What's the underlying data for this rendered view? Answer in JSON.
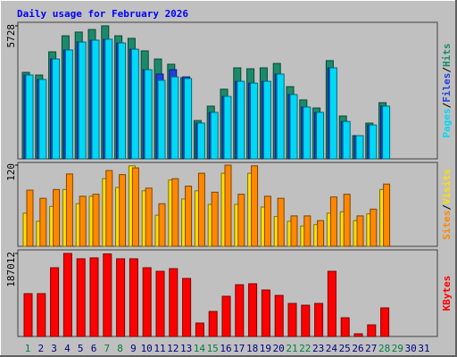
{
  "chart_data": {
    "type": "bar",
    "title": "Daily usage for February 2026",
    "categories": [
      "1",
      "2",
      "3",
      "4",
      "5",
      "6",
      "7",
      "8",
      "9",
      "10",
      "11",
      "12",
      "13",
      "14",
      "15",
      "16",
      "17",
      "18",
      "19",
      "20",
      "21",
      "22",
      "23",
      "24",
      "25",
      "26",
      "27",
      "28",
      "29",
      "30",
      "31"
    ],
    "category_colors": [
      "#008040",
      "#000080",
      "#000080",
      "#000080",
      "#000080",
      "#000080",
      "#008040",
      "#008040",
      "#000080",
      "#000080",
      "#000080",
      "#000080",
      "#000080",
      "#008040",
      "#008040",
      "#000080",
      "#000080",
      "#000080",
      "#000080",
      "#000080",
      "#008040",
      "#008040",
      "#000080",
      "#000080",
      "#000080",
      "#000080",
      "#000080",
      "#008040",
      "#008040",
      "#000080",
      "#000080"
    ],
    "legend_separator": "/",
    "panels": [
      {
        "ylim": [
          0,
          5880
        ],
        "yticks": [
          5728
        ],
        "series": [
          {
            "name": "Hits",
            "color": "#1b8a6b",
            "values": [
              3725,
              3610,
              4610,
              5300,
              5460,
              5570,
              5728,
              5300,
              5190,
              4650,
              4300,
              4075,
              3500,
              1650,
              2270,
              3000,
              3920,
              3880,
              3920,
              4110,
              3110,
              2540,
              2190,
              4230,
              1845,
              1000,
              1540,
              2420,
              0,
              0,
              0
            ]
          },
          {
            "name": "Files",
            "color": "#2040e0",
            "values": [
              3610,
              3420,
              4300,
              4690,
              5030,
              5110,
              5150,
              4990,
              4720,
              3840,
              3650,
              3840,
              3530,
              1540,
              2000,
              2690,
              3340,
              3260,
              3340,
              3650,
              2770,
              2230,
              2000,
              3920,
              1610,
              1000,
              1460,
              2270,
              0,
              0,
              0
            ]
          },
          {
            "name": "Pages",
            "color": "#00d8f8",
            "values": [
              3610,
              3420,
              4300,
              4690,
              5030,
              5110,
              5150,
              4990,
              4720,
              3840,
              3380,
              3530,
              3460,
              1540,
              2000,
              2690,
              3340,
              3260,
              3340,
              3650,
              2770,
              2230,
              2000,
              3920,
              1610,
              1000,
              1460,
              2270,
              0,
              0,
              0
            ]
          }
        ]
      },
      {
        "ylim": [
          0,
          124
        ],
        "yticks": [
          120
        ],
        "series": [
          {
            "name": "Visits",
            "color": "#ffe000",
            "values": [
              49,
              37,
              59,
              84,
              63,
              74,
              100,
              87,
              119,
              82,
              46,
              98,
              70,
              82,
              62,
              108,
              62,
              108,
              58,
              44,
              37,
              30,
              32,
              49,
              51,
              38,
              48,
              84,
              0,
              0,
              0
            ]
          },
          {
            "name": "Sites",
            "color": "#ff8800",
            "values": [
              83,
              71,
              84,
              107,
              74,
              77,
              112,
              106,
              116,
              86,
              63,
              100,
              89,
              108,
              80,
              120,
              77,
              119,
              74,
              71,
              45,
              45,
              38,
              73,
              77,
              45,
              55,
              92,
              0,
              0,
              0
            ]
          }
        ]
      },
      {
        "ylim": [
          0,
          195000
        ],
        "yticks": [
          187012
        ],
        "series": [
          {
            "name": "KBytes",
            "color": "#ff0000",
            "values": [
              96500,
              96500,
              154800,
              187012,
              175000,
              177000,
              186000,
              175000,
              175000,
              154800,
              146800,
              152800,
              130700,
              30200,
              56300,
              90500,
              116600,
              118700,
              104600,
              92500,
              74400,
              70400,
              74400,
              146800,
              42200,
              6000,
              26100,
              64400,
              0,
              0,
              0
            ]
          }
        ]
      }
    ]
  }
}
